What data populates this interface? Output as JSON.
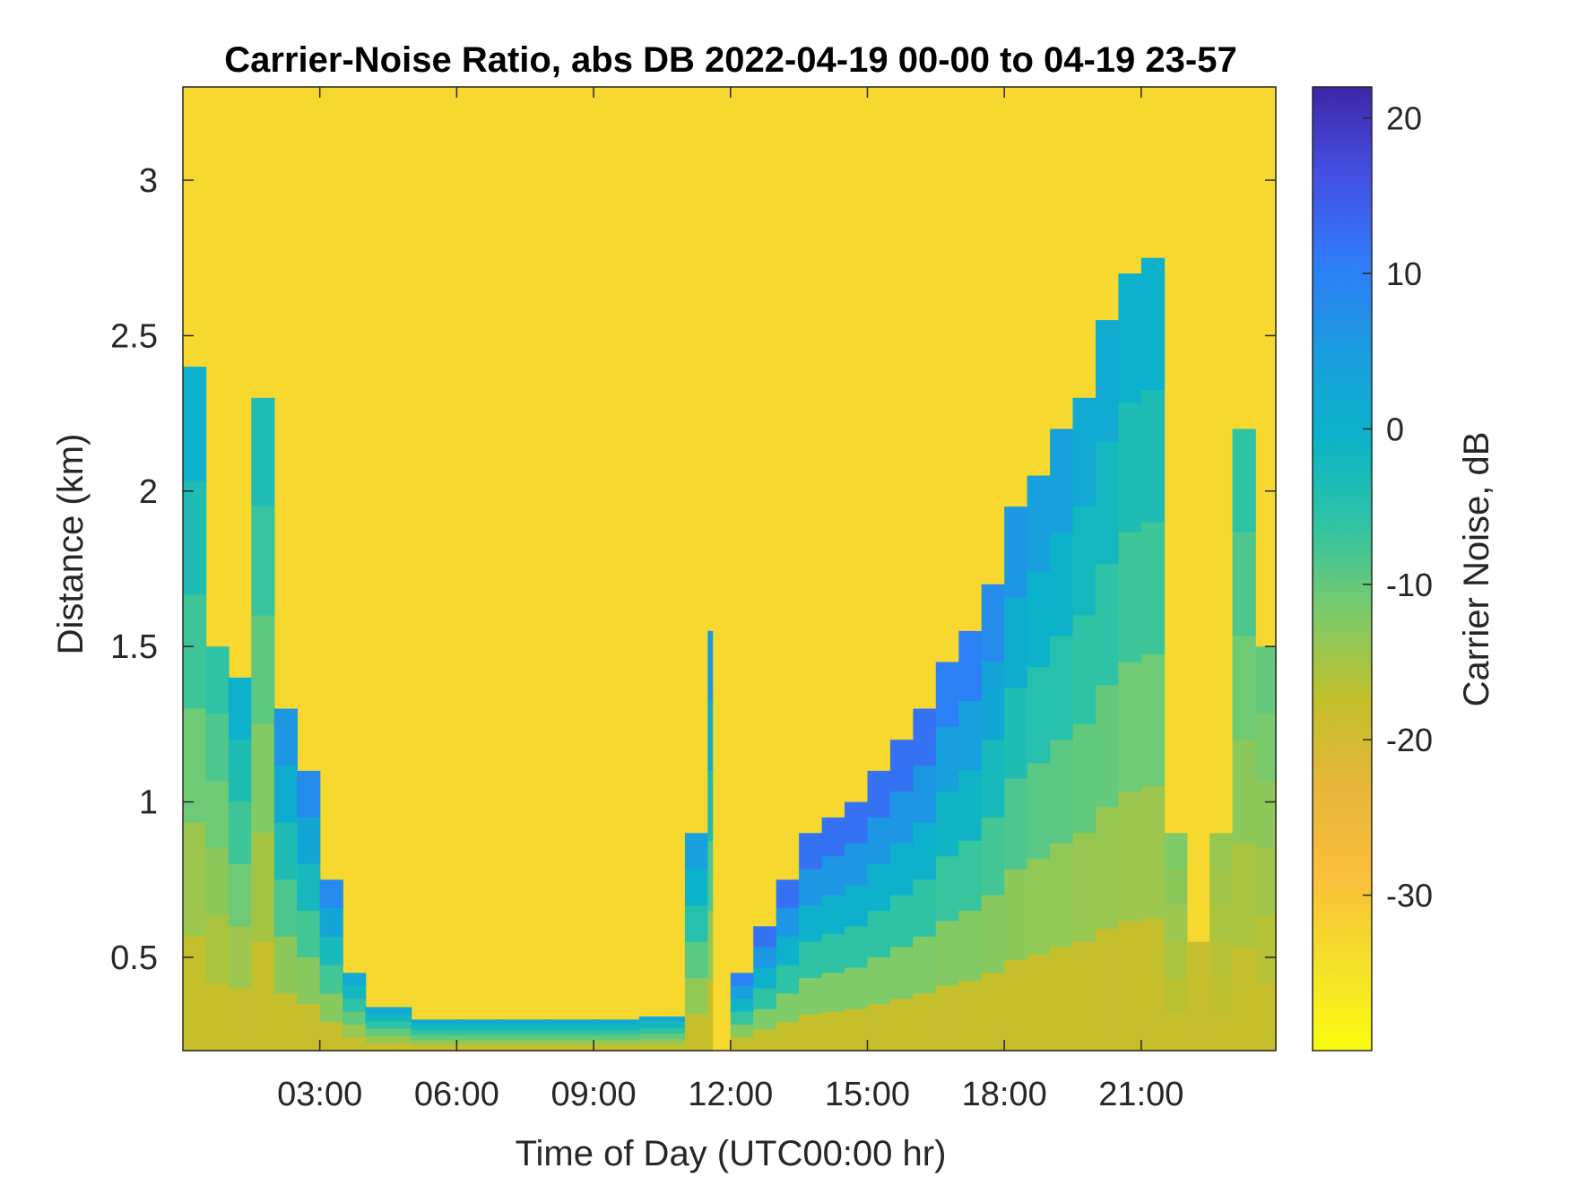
{
  "chart_data": {
    "type": "heatmap",
    "title": "Carrier-Noise Ratio, abs DB 2022-04-19 00-00 to 04-19 23-57",
    "xlabel": "Time of Day (UTC00:00 hr)",
    "ylabel": "Distance (km)",
    "colorbar_label": "Carrier Noise, dB",
    "xlim_hours": [
      0.0,
      23.95
    ],
    "ylim_km": [
      0.2,
      3.3
    ],
    "clim_db": [
      -40,
      22
    ],
    "x_ticks": [
      {
        "hour": 3,
        "label": "03:00"
      },
      {
        "hour": 6,
        "label": "06:00"
      },
      {
        "hour": 9,
        "label": "09:00"
      },
      {
        "hour": 12,
        "label": "12:00"
      },
      {
        "hour": 15,
        "label": "15:00"
      },
      {
        "hour": 18,
        "label": "18:00"
      },
      {
        "hour": 21,
        "label": "21:00"
      }
    ],
    "y_ticks": [
      {
        "km": 0.5,
        "label": "0.5"
      },
      {
        "km": 1.0,
        "label": "1"
      },
      {
        "km": 1.5,
        "label": "1.5"
      },
      {
        "km": 2.0,
        "label": "2"
      },
      {
        "km": 2.5,
        "label": "2.5"
      },
      {
        "km": 3.0,
        "label": "3"
      }
    ],
    "colorbar_ticks": [
      {
        "db": 20,
        "label": "20"
      },
      {
        "db": 10,
        "label": "10"
      },
      {
        "db": 0,
        "label": "0"
      },
      {
        "db": -10,
        "label": "-10"
      },
      {
        "db": -20,
        "label": "-20"
      },
      {
        "db": -30,
        "label": "-30"
      }
    ],
    "colormap": [
      "#3e26a8",
      "#4450e4",
      "#2f7cf8",
      "#1a9ce0",
      "#0cb3c9",
      "#2fc4a3",
      "#7ccb6a",
      "#c2c02a",
      "#e9b63a",
      "#fabe3a",
      "#f5e02a",
      "#f9fb0e"
    ],
    "background_db": -33,
    "signal_top_km": {
      "hours": [
        0.0,
        0.5,
        1.0,
        1.5,
        2.0,
        2.5,
        3.0,
        3.5,
        4.0,
        5.0,
        6.0,
        7.0,
        8.0,
        9.0,
        10.0,
        11.0,
        11.5,
        11.6,
        12.0,
        12.5,
        13.0,
        13.5,
        14.0,
        14.5,
        15.0,
        15.5,
        16.0,
        16.5,
        17.0,
        17.5,
        18.0,
        18.5,
        19.0,
        19.5,
        20.0,
        20.5,
        21.0,
        21.5,
        22.0,
        22.5,
        23.0,
        23.5
      ],
      "km": [
        2.4,
        1.5,
        1.4,
        2.3,
        1.3,
        1.1,
        0.75,
        0.45,
        0.34,
        0.3,
        0.3,
        0.3,
        0.3,
        0.3,
        0.31,
        0.9,
        1.55,
        0.2,
        0.45,
        0.6,
        0.75,
        0.9,
        0.95,
        1.0,
        1.1,
        1.2,
        1.3,
        1.45,
        1.55,
        1.7,
        1.95,
        2.05,
        2.2,
        2.3,
        2.55,
        2.7,
        2.75,
        0.9,
        0.55,
        0.9,
        2.2,
        1.5
      ]
    },
    "signal_peak_db": [
      0,
      -6,
      0,
      -4,
      6,
      8,
      8,
      2,
      2,
      2,
      2,
      2,
      2,
      2,
      2,
      4,
      6,
      -33,
      10,
      12,
      12,
      12,
      12,
      12,
      12,
      12,
      12,
      10,
      10,
      8,
      6,
      4,
      4,
      2,
      2,
      0,
      0,
      -12,
      -18,
      -14,
      -6,
      -10
    ]
  }
}
